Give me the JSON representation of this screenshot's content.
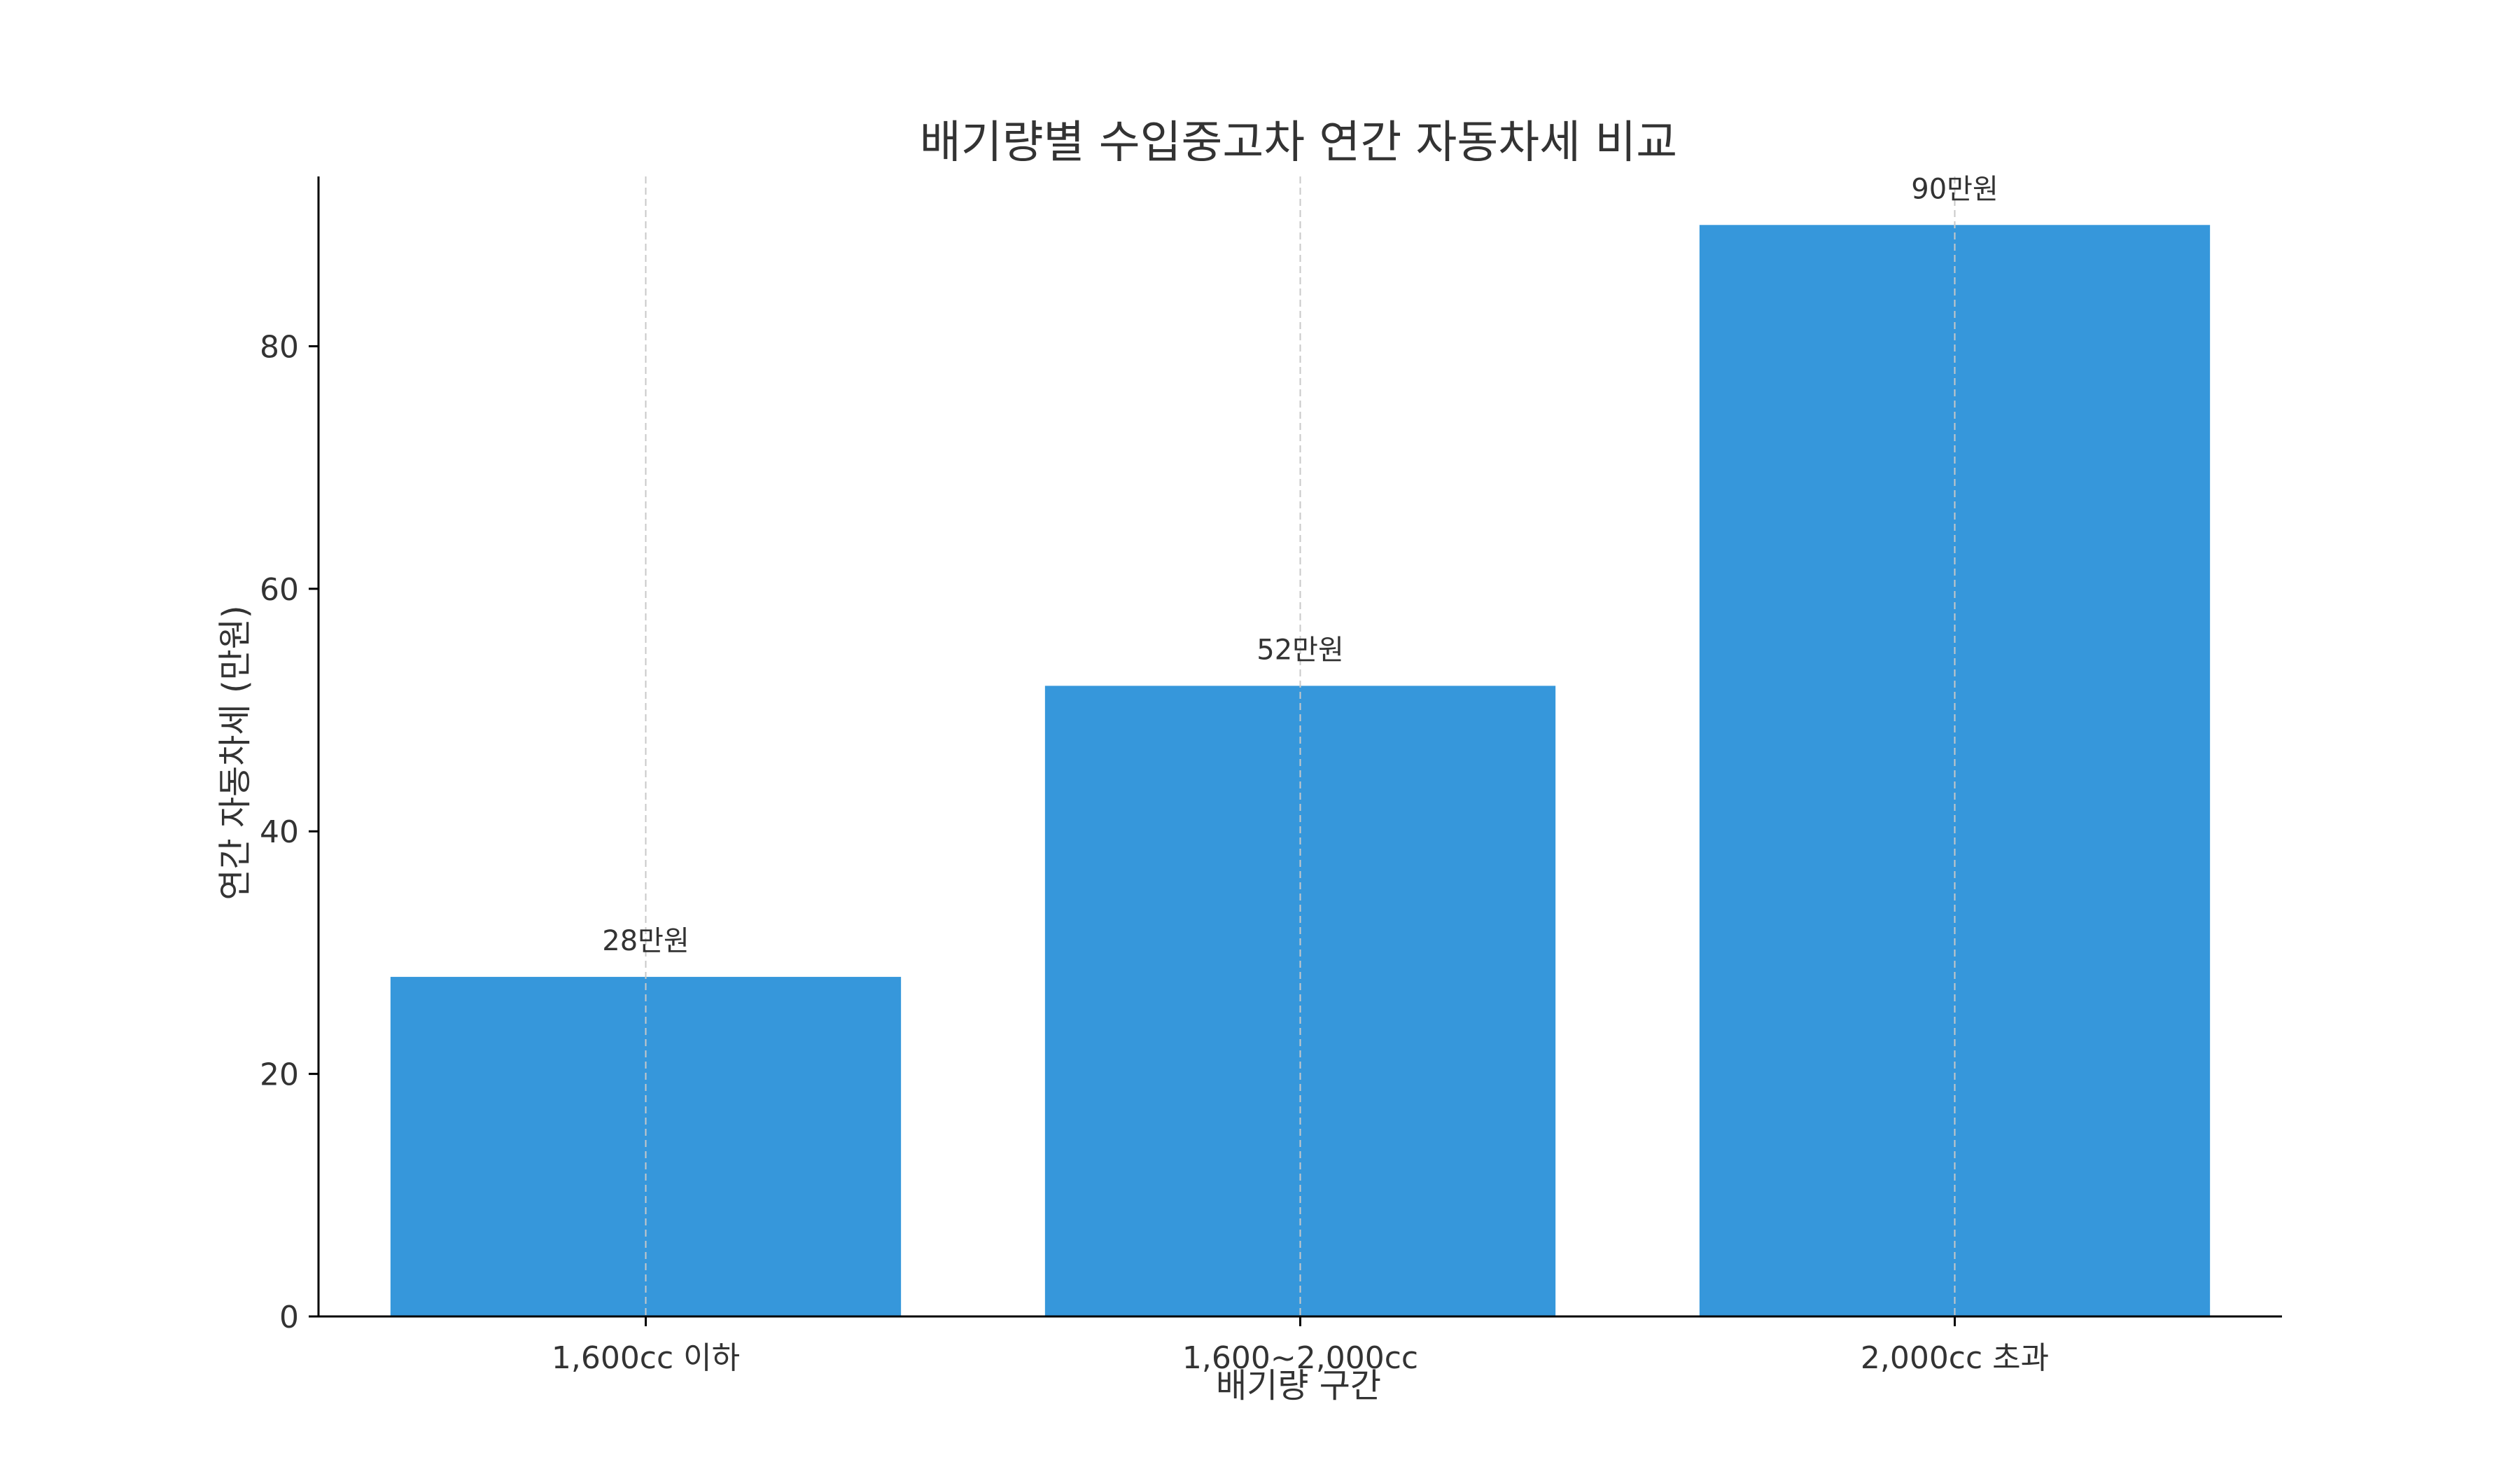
{
  "chart_data": {
    "type": "bar",
    "title": "배기량별 수입중고차 연간 자동차세 비교",
    "xlabel": "배기량 구간",
    "ylabel": "연간 자동차세 (만원)",
    "categories": [
      "1,600cc 이하",
      "1,600~2,000cc",
      "2,000cc 초과"
    ],
    "values": [
      28,
      52,
      90
    ],
    "data_labels": [
      "28만원",
      "52만원",
      "90만원"
    ],
    "ylim": [
      0,
      94
    ],
    "yticks": [
      0,
      20,
      40,
      60,
      80
    ],
    "grid": "x-dashed",
    "bar_color": "#3697DB"
  }
}
